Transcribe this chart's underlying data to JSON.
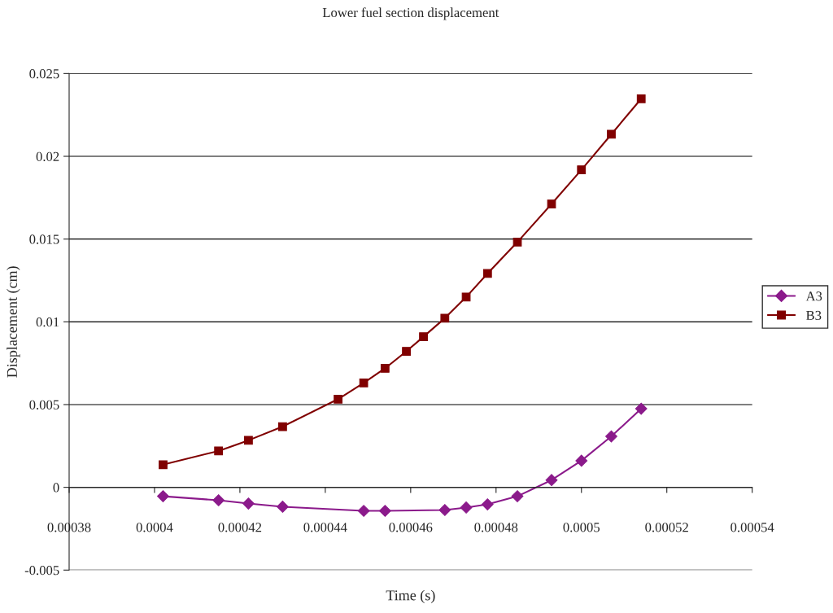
{
  "chart_data": {
    "type": "line",
    "title": "Lower fuel section displacement",
    "xlabel": "Time (s)",
    "ylabel": "Displacement (cm)",
    "xlim": [
      0.00038,
      0.00054
    ],
    "xticks": [
      0.00038,
      0.0004,
      0.00042,
      0.00044,
      0.00046,
      0.00048,
      0.0005,
      0.00052,
      0.00054
    ],
    "ylim": [
      -0.005,
      0.025
    ],
    "yticks": [
      -0.005,
      0,
      0.005,
      0.01,
      0.015,
      0.02,
      0.025
    ],
    "grid": "y",
    "legend": "right",
    "series": [
      {
        "name": "A3",
        "color": "#8b1a8b",
        "marker": "diamond",
        "x": [
          0.000402,
          0.000415,
          0.000422,
          0.00043,
          0.000449,
          0.000454,
          0.000468,
          0.000473,
          0.000478,
          0.000485,
          0.000493,
          0.0005,
          0.000507,
          0.000514
        ],
        "values": [
          -0.00054,
          -0.00078,
          -0.00098,
          -0.00117,
          -0.00142,
          -0.00142,
          -0.00137,
          -0.00122,
          -0.00103,
          -0.00054,
          0.00044,
          0.00161,
          0.00308,
          0.00475
        ]
      },
      {
        "name": "B3",
        "color": "#800000",
        "marker": "square",
        "x": [
          0.000402,
          0.000415,
          0.000422,
          0.00043,
          0.000443,
          0.000449,
          0.000454,
          0.000459,
          0.000463,
          0.000468,
          0.000473,
          0.000478,
          0.000485,
          0.000493,
          0.0005,
          0.000507,
          0.000514
        ],
        "values": [
          0.00137,
          0.0022,
          0.00284,
          0.00367,
          0.00533,
          0.00631,
          0.00719,
          0.00822,
          0.0091,
          0.01022,
          0.0115,
          0.01292,
          0.01482,
          0.01712,
          0.01918,
          0.02133,
          0.02348
        ]
      }
    ]
  }
}
